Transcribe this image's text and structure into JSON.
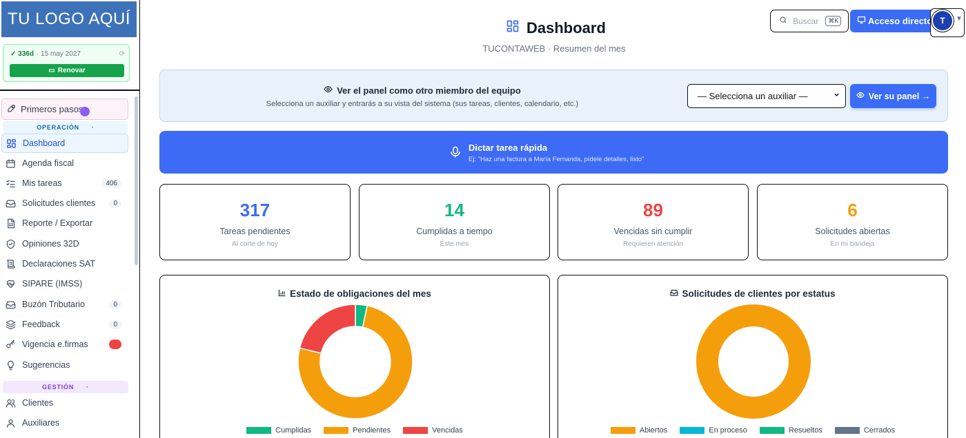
{
  "sidebar": {
    "logo_text": "TU LOGO AQUÍ",
    "subscription": {
      "days": "✓ 336d",
      "date": "· 15 may 2027",
      "renew_label": "Renovar"
    },
    "first_steps_label": "Primeros pasos",
    "section_operacion": "OPERACIÓN",
    "section_gestion": "GESTIÓN",
    "items": [
      {
        "label": "Dashboard",
        "icon": "grid-icon"
      },
      {
        "label": "Agenda fiscal",
        "icon": "calendar-icon"
      },
      {
        "label": "Mis tareas",
        "icon": "task-list-icon",
        "badge": "406"
      },
      {
        "label": "Solicitudes clientes",
        "icon": "inbox-icon",
        "badge": "0"
      },
      {
        "label": "Reporte / Exportar",
        "icon": "document-icon"
      },
      {
        "label": "Opiniones 32D",
        "icon": "shield-check-icon"
      },
      {
        "label": "Declaraciones SAT",
        "icon": "scroll-icon"
      },
      {
        "label": "SIPARE (IMSS)",
        "icon": "heart-pulse-icon"
      },
      {
        "label": "Buzón Tributario",
        "icon": "mailbox-icon",
        "badge": "0"
      },
      {
        "label": "Feedback",
        "icon": "layers-icon",
        "badge": "0"
      },
      {
        "label": "Vigencia e.firmas",
        "icon": "key-icon",
        "badge": "1"
      },
      {
        "label": "Sugerencias",
        "icon": "lightbulb-icon"
      },
      {
        "label": "Clientes",
        "icon": "users-icon"
      },
      {
        "label": "Auxiliares",
        "icon": "user-icon"
      }
    ]
  },
  "topbar": {
    "search_placeholder": "Buscar",
    "search_shortcut": "⌘K",
    "quick_access_label": "Acceso directo",
    "avatar_initial": "T"
  },
  "header": {
    "title": "Dashboard",
    "subtitle": "TUCONTAWEB · Resumen del mes"
  },
  "team_panel": {
    "title": "Ver el panel como otro miembro del equipo",
    "description": "Selecciona un auxiliar y entrarás a su vista del sistema (sus tareas, clientes, calendario, etc.)",
    "select_value": "— Selecciona un auxiliar —",
    "button_label": "Ver su panel →"
  },
  "dictate": {
    "title": "Dictar tarea rápida",
    "example": "Ej: \"Haz una factura a María Fernanda, pídele detalles, listo\""
  },
  "stats": [
    {
      "value": "317",
      "label": "Tareas pendientes",
      "sub": "Al corte de hoy",
      "color": "#3b6cf6"
    },
    {
      "value": "14",
      "label": "Cumplidas a tiempo",
      "sub": "Este mes",
      "color": "#10b981"
    },
    {
      "value": "89",
      "label": "Vencidas sin cumplir",
      "sub": "Requieren atención",
      "color": "#ef4444"
    },
    {
      "value": "6",
      "label": "Solicitudes abiertas",
      "sub": "En mi bandeja",
      "color": "#f59e0b"
    }
  ],
  "chart_data": [
    {
      "type": "pie",
      "title": "Estado de obligaciones del mes",
      "categories": [
        "Cumplidas",
        "Pendientes",
        "Vencidas"
      ],
      "values": [
        14,
        317,
        89
      ],
      "colors": [
        "#10b981",
        "#f59e0b",
        "#ef4444"
      ],
      "legend": "bottom"
    },
    {
      "type": "pie",
      "title": "Solicitudes de clientes por estatus",
      "categories": [
        "Abiertos",
        "En proceso",
        "Resueltos",
        "Cerrados"
      ],
      "values": [
        6,
        0,
        0,
        0
      ],
      "colors": [
        "#f59e0b",
        "#06b6d4",
        "#10b981",
        "#64748b"
      ],
      "legend": "bottom"
    }
  ]
}
